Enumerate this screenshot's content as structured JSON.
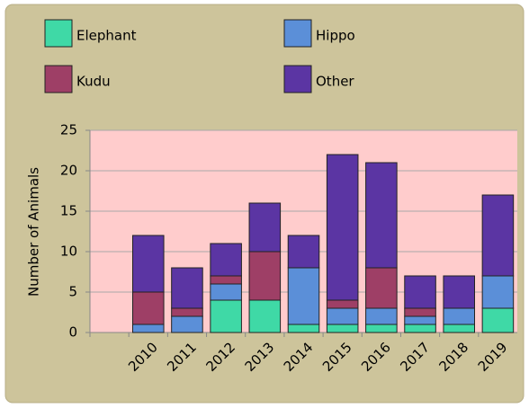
{
  "chart_data": {
    "type": "stacked_bar",
    "y_label": "Number of Animals",
    "categories": [
      null,
      "2010",
      "2011",
      "2012",
      "2013",
      "2014",
      "2015",
      "2016",
      "2017",
      "2018",
      "2019"
    ],
    "series": [
      {
        "name": "Elephant",
        "color": "#3fd9a6",
        "values": [
          null,
          0,
          0,
          4,
          4,
          1,
          1,
          1,
          1,
          1,
          3
        ]
      },
      {
        "name": "Hippo",
        "color": "#5b8fd8",
        "values": [
          null,
          1,
          2,
          2,
          0,
          7,
          2,
          2,
          1,
          2,
          4
        ]
      },
      {
        "name": "Kudu",
        "color": "#9e3f66",
        "values": [
          null,
          4,
          1,
          1,
          6,
          0,
          1,
          5,
          1,
          0,
          0
        ]
      },
      {
        "name": "Other",
        "color": "#5b35a3",
        "values": [
          null,
          7,
          5,
          4,
          6,
          4,
          18,
          13,
          4,
          4,
          10
        ]
      }
    ],
    "ylim": [
      0,
      25
    ],
    "yticks": [
      0,
      5,
      10,
      15,
      20,
      25
    ],
    "grid": true
  }
}
